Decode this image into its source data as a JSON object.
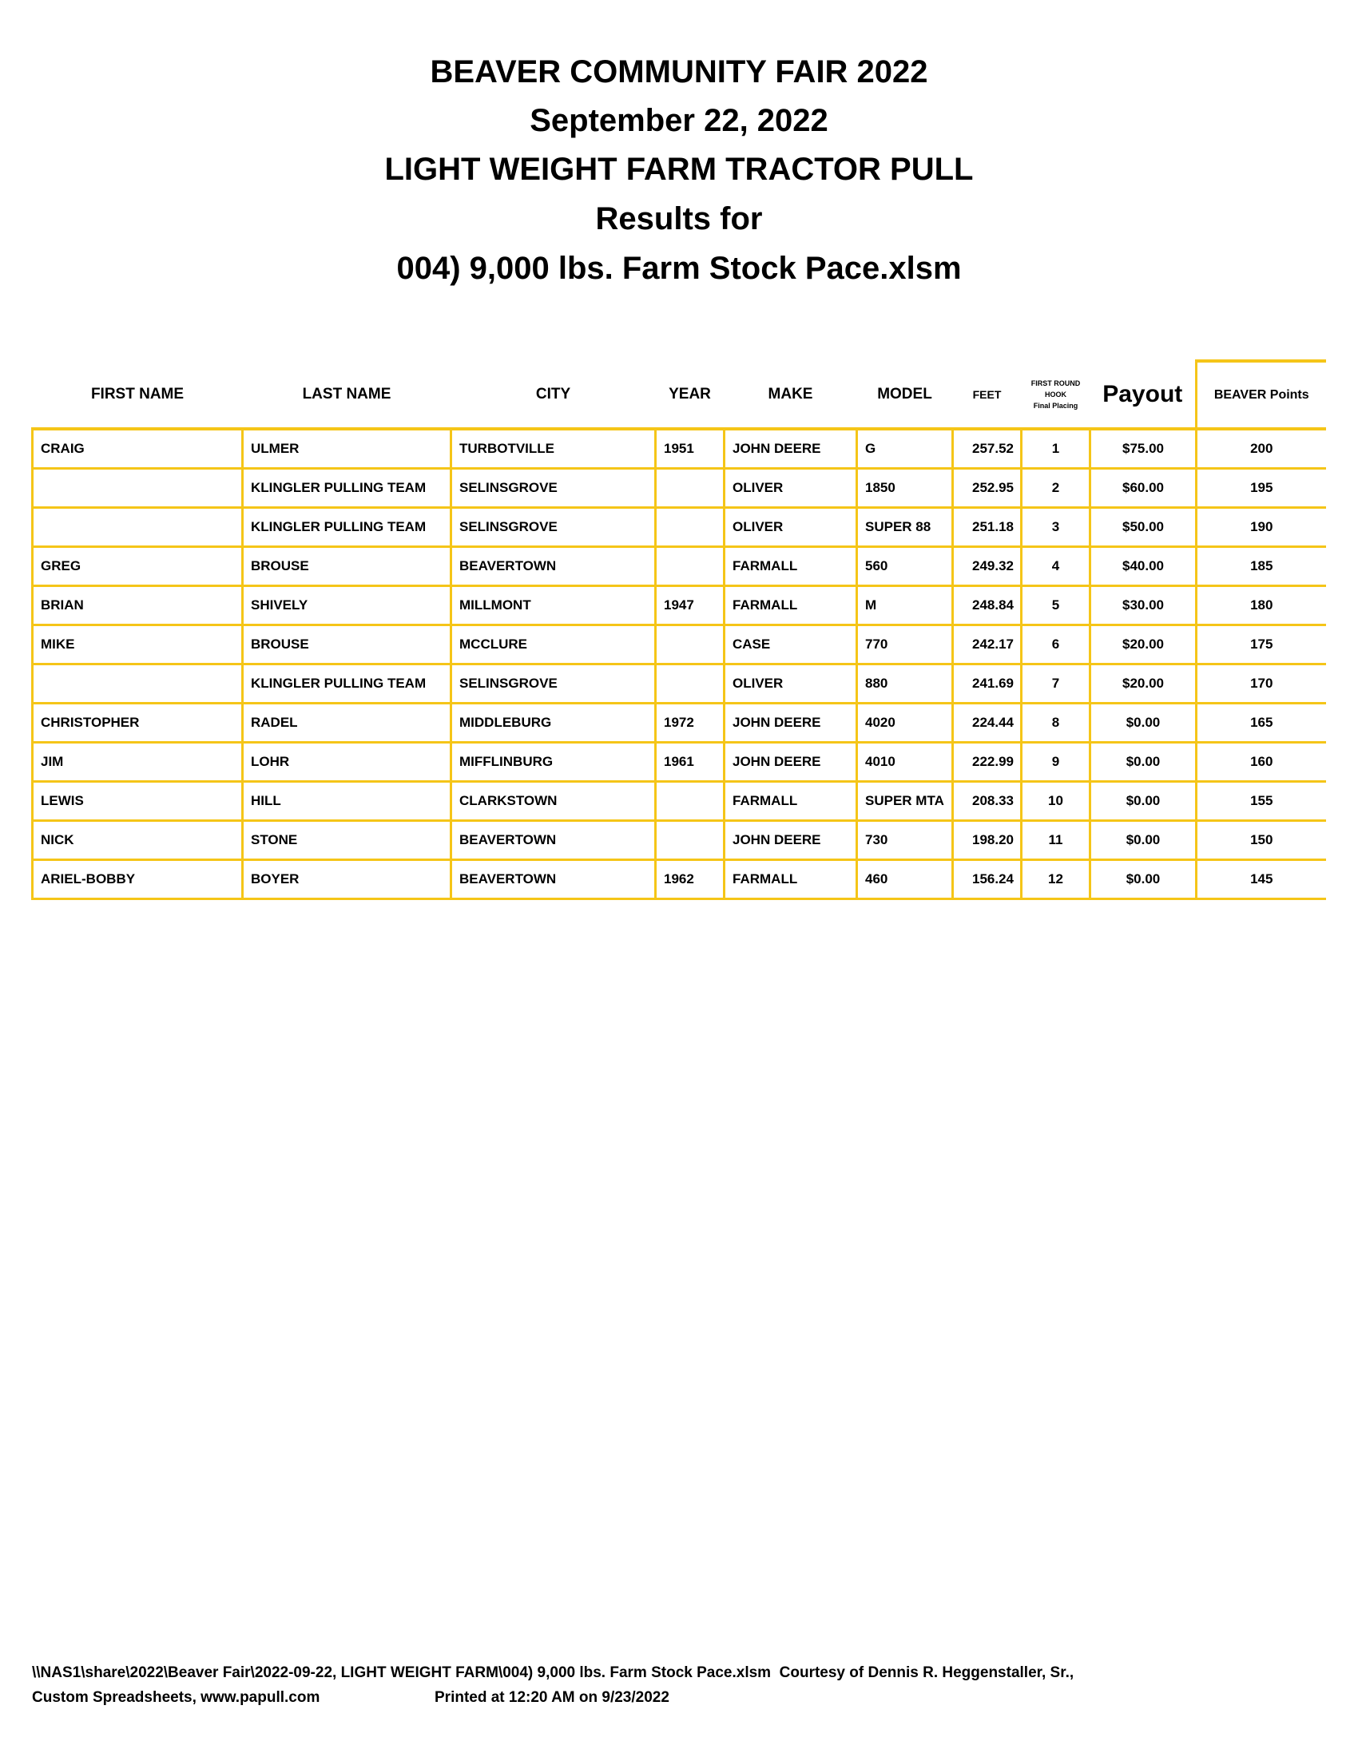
{
  "title_lines": [
    "BEAVER COMMUNITY FAIR 2022",
    "September 22, 2022",
    "LIGHT WEIGHT FARM TRACTOR PULL",
    "Results for",
    "004) 9,000 lbs. Farm Stock Pace.xlsm"
  ],
  "table": {
    "headers": {
      "first_name": "FIRST NAME",
      "last_name": "LAST NAME",
      "city": "CITY",
      "year": "YEAR",
      "make": "MAKE",
      "model": "MODEL",
      "feet": "FEET",
      "hook_line1": "FIRST ROUND",
      "hook_line2": "HOOK",
      "hook_line3": "Final Placing",
      "payout": "Payout",
      "points": "BEAVER Points"
    },
    "rows": [
      [
        "CRAIG",
        "ULMER",
        "TURBOTVILLE",
        "1951",
        "JOHN DEERE",
        "G",
        "257.52",
        "1",
        "$75.00",
        "200"
      ],
      [
        "",
        "KLINGLER PULLING TEAM",
        "SELINSGROVE",
        "",
        "OLIVER",
        "1850",
        "252.95",
        "2",
        "$60.00",
        "195"
      ],
      [
        "",
        "KLINGLER PULLING TEAM",
        "SELINSGROVE",
        "",
        "OLIVER",
        "SUPER 88",
        "251.18",
        "3",
        "$50.00",
        "190"
      ],
      [
        "GREG",
        "BROUSE",
        "BEAVERTOWN",
        "",
        "FARMALL",
        "560",
        "249.32",
        "4",
        "$40.00",
        "185"
      ],
      [
        "BRIAN",
        "SHIVELY",
        "MILLMONT",
        "1947",
        "FARMALL",
        "M",
        "248.84",
        "5",
        "$30.00",
        "180"
      ],
      [
        "MIKE",
        "BROUSE",
        "MCCLURE",
        "",
        "CASE",
        "770",
        "242.17",
        "6",
        "$20.00",
        "175"
      ],
      [
        "",
        "KLINGLER PULLING TEAM",
        "SELINSGROVE",
        "",
        "OLIVER",
        "880",
        "241.69",
        "7",
        "$20.00",
        "170"
      ],
      [
        "CHRISTOPHER",
        "RADEL",
        "MIDDLEBURG",
        "1972",
        "JOHN DEERE",
        "4020",
        "224.44",
        "8",
        "$0.00",
        "165"
      ],
      [
        "JIM",
        "LOHR",
        "MIFFLINBURG",
        "1961",
        "JOHN DEERE",
        "4010",
        "222.99",
        "9",
        "$0.00",
        "160"
      ],
      [
        "LEWIS",
        "HILL",
        "CLARKSTOWN",
        "",
        "FARMALL",
        "SUPER MTA",
        "208.33",
        "10",
        "$0.00",
        "155"
      ],
      [
        "NICK",
        "STONE",
        "BEAVERTOWN",
        "",
        "JOHN DEERE",
        "730",
        "198.20",
        "11",
        "$0.00",
        "150"
      ],
      [
        "ARIEL-BOBBY",
        "BOYER",
        "BEAVERTOWN",
        "1962",
        "FARMALL",
        "460",
        "156.24",
        "12",
        "$0.00",
        "145"
      ]
    ]
  },
  "footer": {
    "line1": "\\\\NAS1\\share\\2022\\Beaver Fair\\2022-09-22, LIGHT WEIGHT FARM\\004) 9,000 lbs. Farm Stock Pace.xlsm  Courtesy of Dennis R. Heggenstaller, Sr.,",
    "line2_left": "Custom Spreadsheets, www.papull.com",
    "line2_right": "Printed at 12:20 AM on 9/23/2022"
  },
  "colors": {
    "grid": "#F5C518"
  }
}
